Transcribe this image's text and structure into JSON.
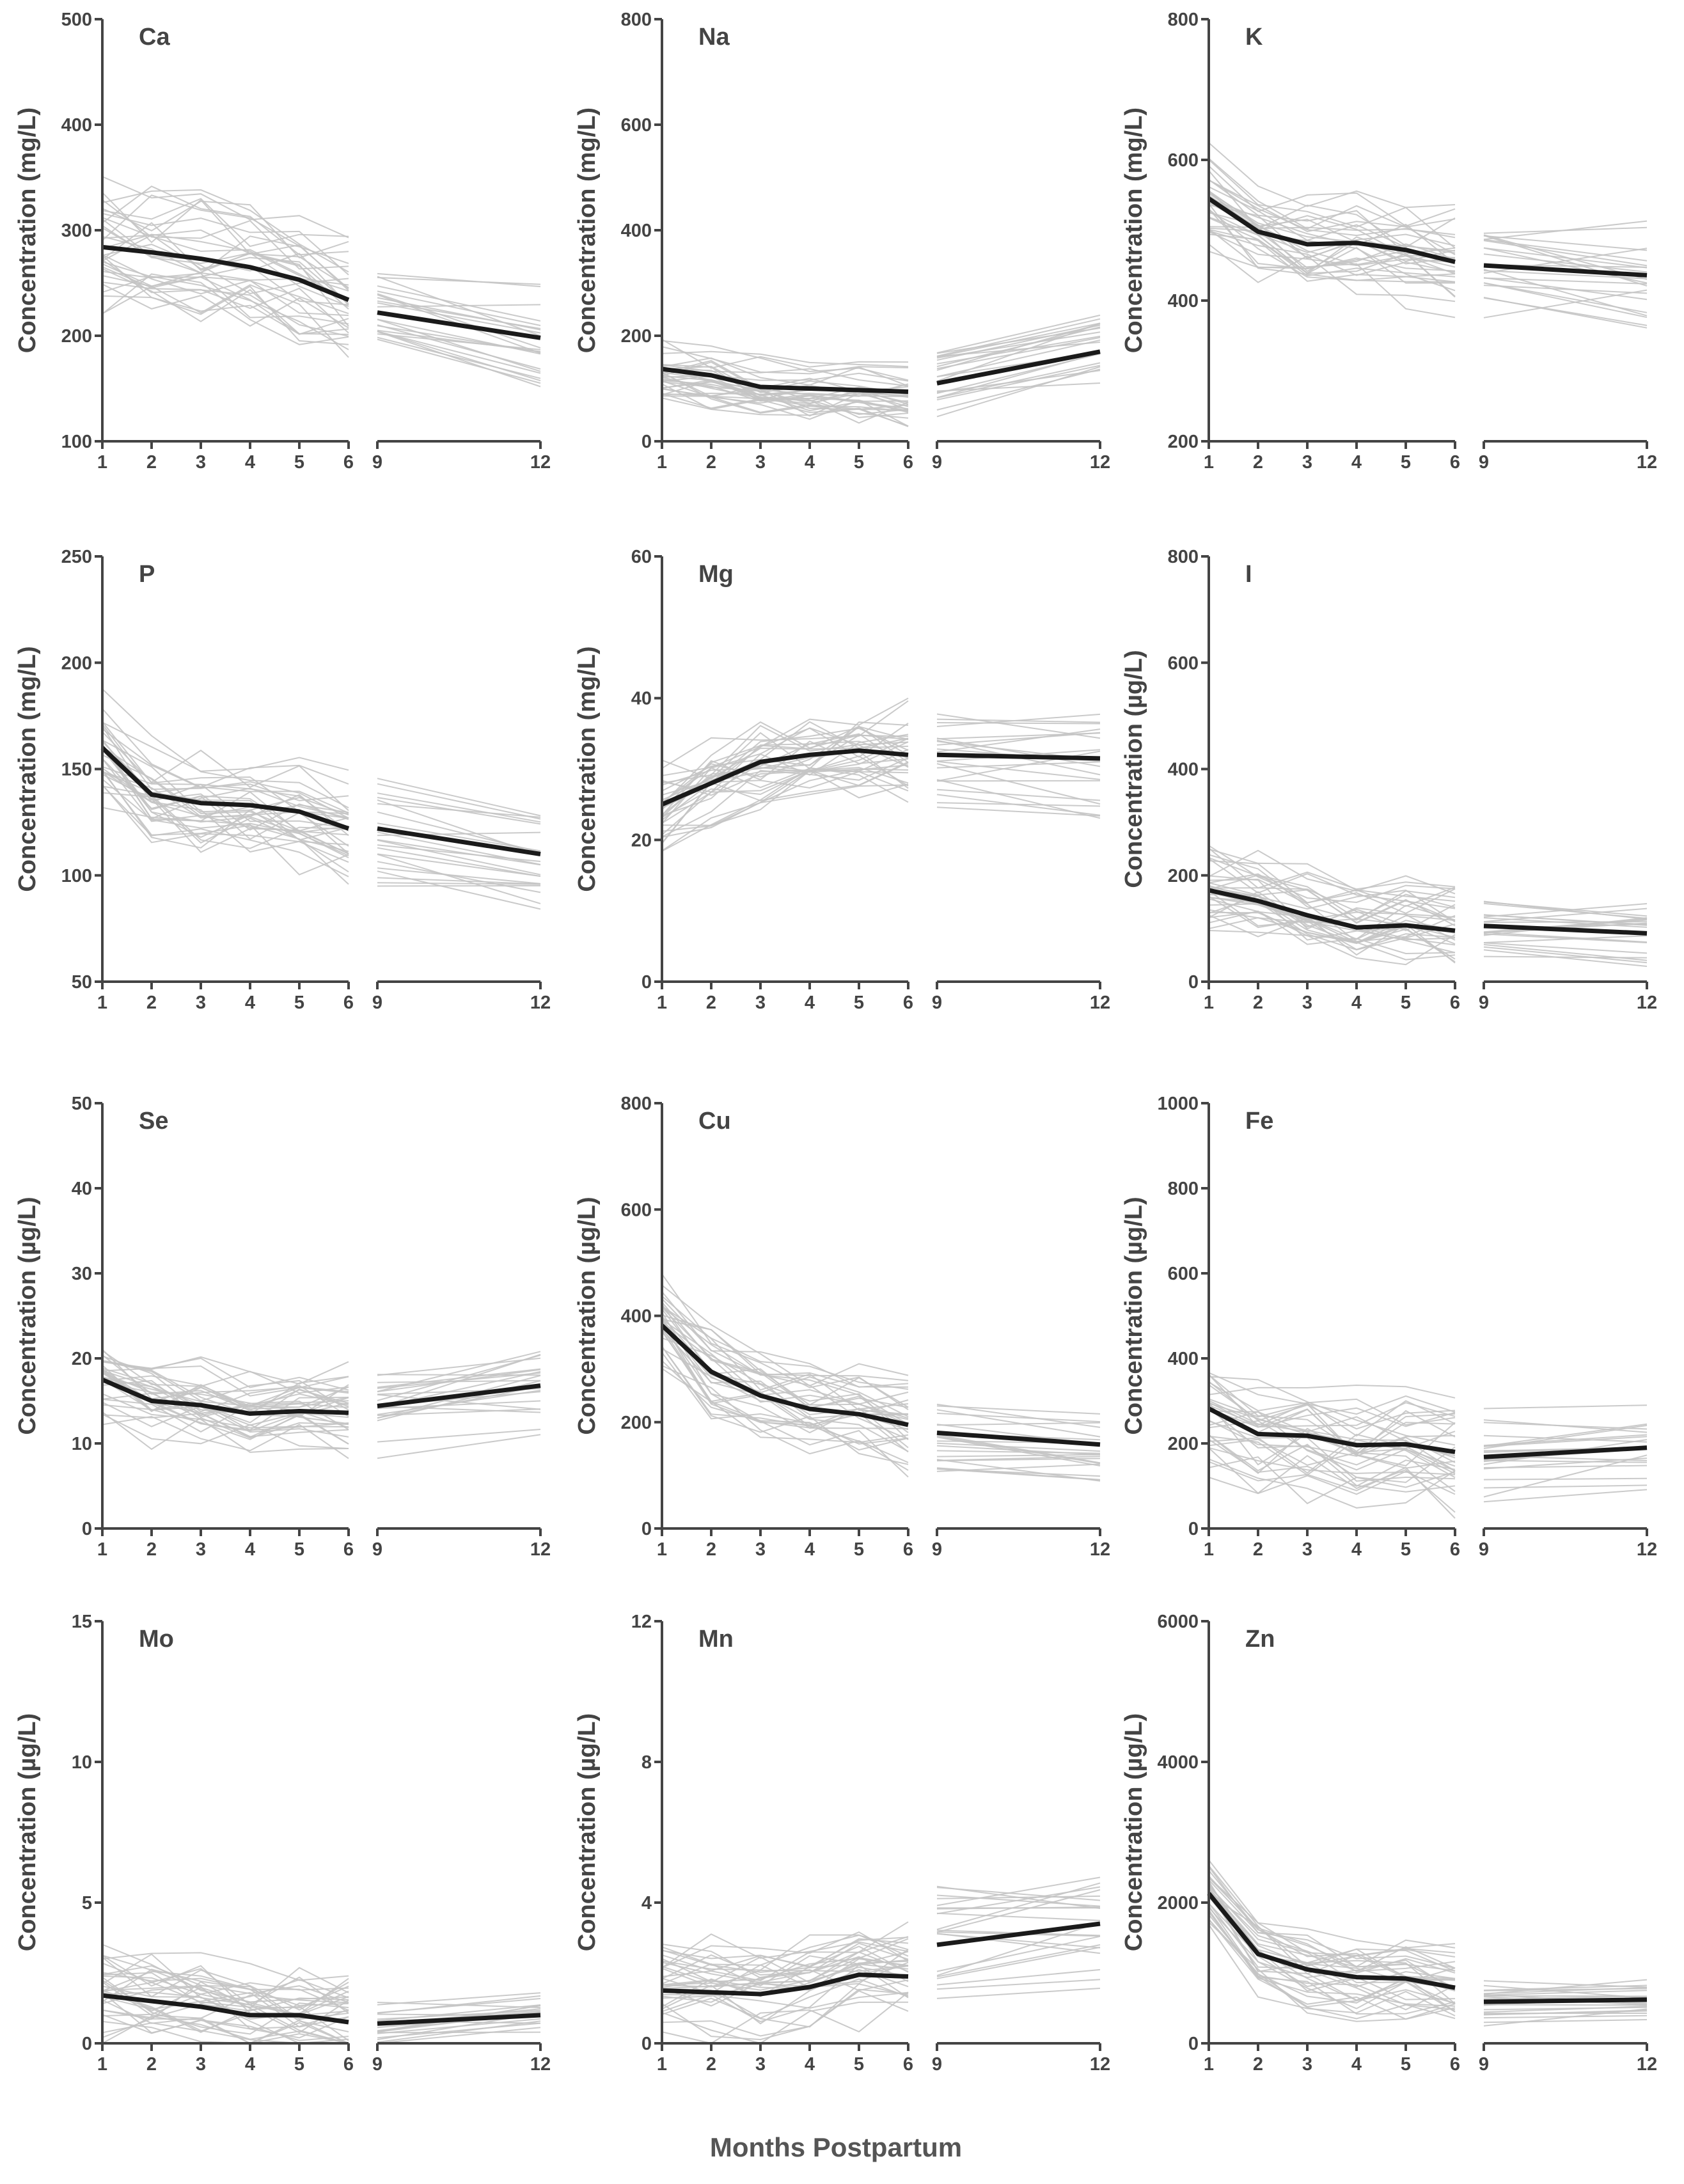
{
  "figure": {
    "x_axis_title": "Months Postpartum",
    "colors": {
      "axis": "#444444",
      "individual": "#c4c4c4",
      "mean": "#1a1a1a"
    }
  },
  "chart_data": [
    {
      "type": "line",
      "title": "Ca",
      "ylabel": "Concentration (mg/L)",
      "ylim": [
        100,
        500
      ],
      "yticks": [
        100,
        200,
        300,
        400,
        500
      ],
      "x_left": [
        1,
        2,
        3,
        4,
        5,
        6
      ],
      "x_right": [
        9,
        12
      ],
      "mean_left": [
        284,
        279,
        273,
        265,
        253,
        234
      ],
      "mean_right": [
        222,
        198
      ],
      "spread_left": 45,
      "spread_right": 40
    },
    {
      "type": "line",
      "title": "Na",
      "ylabel": "Concentration (mg/L)",
      "ylim": [
        0,
        800
      ],
      "yticks": [
        0,
        200,
        400,
        600,
        800
      ],
      "x_left": [
        1,
        2,
        3,
        4,
        5,
        6
      ],
      "x_right": [
        9,
        12
      ],
      "mean_left": [
        137,
        125,
        103,
        100,
        97,
        94
      ],
      "mean_right": [
        110,
        170
      ],
      "spread_left": 45,
      "spread_right": 55
    },
    {
      "type": "line",
      "title": "K",
      "ylabel": "Concentration (mg/L)",
      "ylim": [
        200,
        800
      ],
      "yticks": [
        200,
        400,
        600,
        800
      ],
      "x_left": [
        1,
        2,
        3,
        4,
        5,
        6
      ],
      "x_right": [
        9,
        12
      ],
      "mean_left": [
        545,
        498,
        480,
        482,
        472,
        455
      ],
      "mean_right": [
        450,
        436
      ],
      "spread_left": 55,
      "spread_right": 60
    },
    {
      "type": "line",
      "title": "P",
      "ylabel": "Concentration (mg/L)",
      "ylim": [
        50,
        250
      ],
      "yticks": [
        50,
        100,
        150,
        200,
        250
      ],
      "x_left": [
        1,
        2,
        3,
        4,
        5,
        6
      ],
      "x_right": [
        9,
        12
      ],
      "mean_left": [
        160,
        138,
        134,
        133,
        130,
        122
      ],
      "mean_right": [
        122,
        110
      ],
      "spread_left": 20,
      "spread_right": 20
    },
    {
      "type": "line",
      "title": "Mg",
      "ylabel": "Concentration (mg/L)",
      "ylim": [
        0,
        60
      ],
      "yticks": [
        0,
        20,
        40,
        60
      ],
      "x_left": [
        1,
        2,
        3,
        4,
        5,
        6
      ],
      "x_right": [
        9,
        12
      ],
      "mean_left": [
        25,
        28,
        31,
        32,
        32.6,
        32
      ],
      "mean_right": [
        32,
        31.5
      ],
      "spread_left": 6,
      "spread_right": 6
    },
    {
      "type": "line",
      "title": "I",
      "ylabel": "Concentration (µg/L)",
      "ylim": [
        0,
        800
      ],
      "yticks": [
        0,
        200,
        400,
        600,
        800
      ],
      "x_left": [
        1,
        2,
        3,
        4,
        5,
        6
      ],
      "x_right": [
        9,
        12
      ],
      "mean_left": [
        172,
        152,
        125,
        102,
        106,
        96
      ],
      "mean_right": [
        105,
        91
      ],
      "spread_left": 70,
      "spread_right": 50
    },
    {
      "type": "line",
      "title": "Se",
      "ylabel": "Concentration (µg/L)",
      "ylim": [
        0,
        50
      ],
      "yticks": [
        0,
        10,
        20,
        30,
        40,
        50
      ],
      "x_left": [
        1,
        2,
        3,
        4,
        5,
        6
      ],
      "x_right": [
        9,
        12
      ],
      "mean_left": [
        17.5,
        15,
        14.5,
        13.5,
        13.8,
        13.6
      ],
      "mean_right": [
        14.4,
        16.8
      ],
      "spread_left": 4,
      "spread_right": 4
    },
    {
      "type": "line",
      "title": "Cu",
      "ylabel": "Concentration (µg/L)",
      "ylim": [
        0,
        800
      ],
      "yticks": [
        0,
        200,
        400,
        600,
        800
      ],
      "x_left": [
        1,
        2,
        3,
        4,
        5,
        6
      ],
      "x_right": [
        9,
        12
      ],
      "mean_left": [
        382,
        295,
        250,
        225,
        215,
        195
      ],
      "mean_right": [
        180,
        158
      ],
      "spread_left": 70,
      "spread_right": 50
    },
    {
      "type": "line",
      "title": "Fe",
      "ylabel": "Concentration (µg/L)",
      "ylim": [
        0,
        1000
      ],
      "yticks": [
        0,
        200,
        400,
        600,
        800,
        1000
      ],
      "x_left": [
        1,
        2,
        3,
        4,
        5,
        6
      ],
      "x_right": [
        9,
        12
      ],
      "mean_left": [
        282,
        222,
        218,
        196,
        198,
        180
      ],
      "mean_right": [
        168,
        190
      ],
      "spread_left": 110,
      "spread_right": 80
    },
    {
      "type": "line",
      "title": "Mo",
      "ylabel": "Concentration (µg/L)",
      "ylim": [
        0,
        15
      ],
      "yticks": [
        0,
        5,
        10,
        15
      ],
      "x_left": [
        1,
        2,
        3,
        4,
        5,
        6
      ],
      "x_right": [
        9,
        12
      ],
      "mean_left": [
        1.7,
        1.5,
        1.3,
        1.0,
        1.0,
        0.75
      ],
      "mean_right": [
        0.7,
        1.0
      ],
      "spread_left": 1.4,
      "spread_right": 0.8
    },
    {
      "type": "line",
      "title": "Mn",
      "ylabel": "Concentration (µg/L)",
      "ylim": [
        0,
        12
      ],
      "yticks": [
        0,
        4,
        8,
        12
      ],
      "x_left": [
        1,
        2,
        3,
        4,
        5,
        6
      ],
      "x_right": [
        9,
        12
      ],
      "mean_left": [
        1.5,
        1.45,
        1.4,
        1.6,
        1.95,
        1.9
      ],
      "mean_right": [
        2.8,
        3.4
      ],
      "spread_left": 1.1,
      "spread_right": 1.3
    },
    {
      "type": "line",
      "title": "Zn",
      "ylabel": "Concentration (µg/L)",
      "ylim": [
        0,
        6000
      ],
      "yticks": [
        0,
        2000,
        4000,
        6000
      ],
      "x_left": [
        1,
        2,
        3,
        4,
        5,
        6
      ],
      "x_right": [
        9,
        12
      ],
      "mean_left": [
        2130,
        1270,
        1050,
        940,
        920,
        790
      ],
      "mean_right": [
        590,
        620
      ],
      "spread_left": 450,
      "spread_right": 250
    }
  ]
}
